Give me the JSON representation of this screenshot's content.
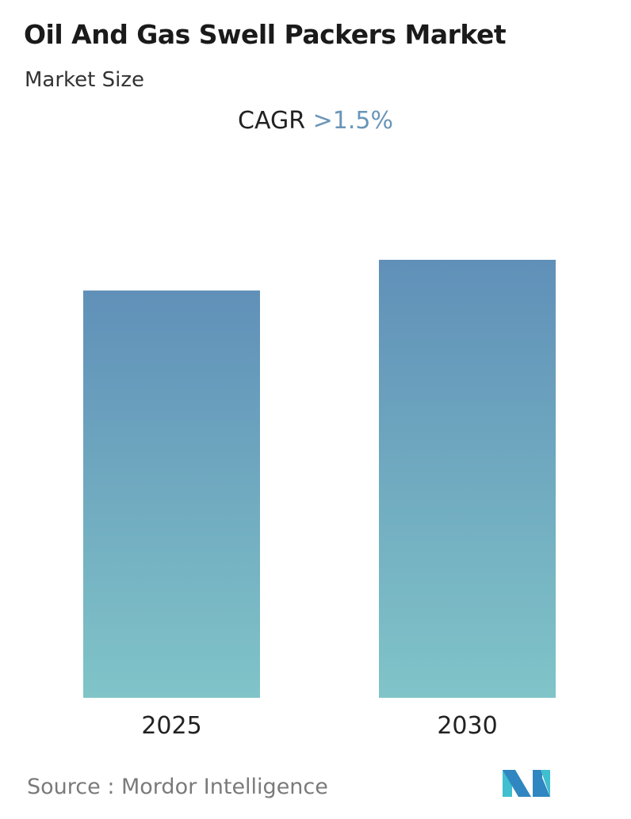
{
  "header": {
    "title": "Oil And Gas Swell Packers Market",
    "subtitle": "Market Size"
  },
  "cagr": {
    "label": "CAGR",
    "value": ">1.5%"
  },
  "chart_data": {
    "type": "bar",
    "categories": [
      "2025",
      "2030"
    ],
    "values": [
      0.93,
      1.0
    ],
    "value_note_units": "relative",
    "ylim": [
      0,
      1.0
    ],
    "grid": false,
    "colors": {
      "bar_top": "#6090b8",
      "bar_bottom": "#80c4c8"
    }
  },
  "footer": {
    "source": "Source :  Mordor Intelligence"
  },
  "logo": {
    "name": "mordor-intelligence-logo",
    "text": "Mordor Intelligence"
  }
}
